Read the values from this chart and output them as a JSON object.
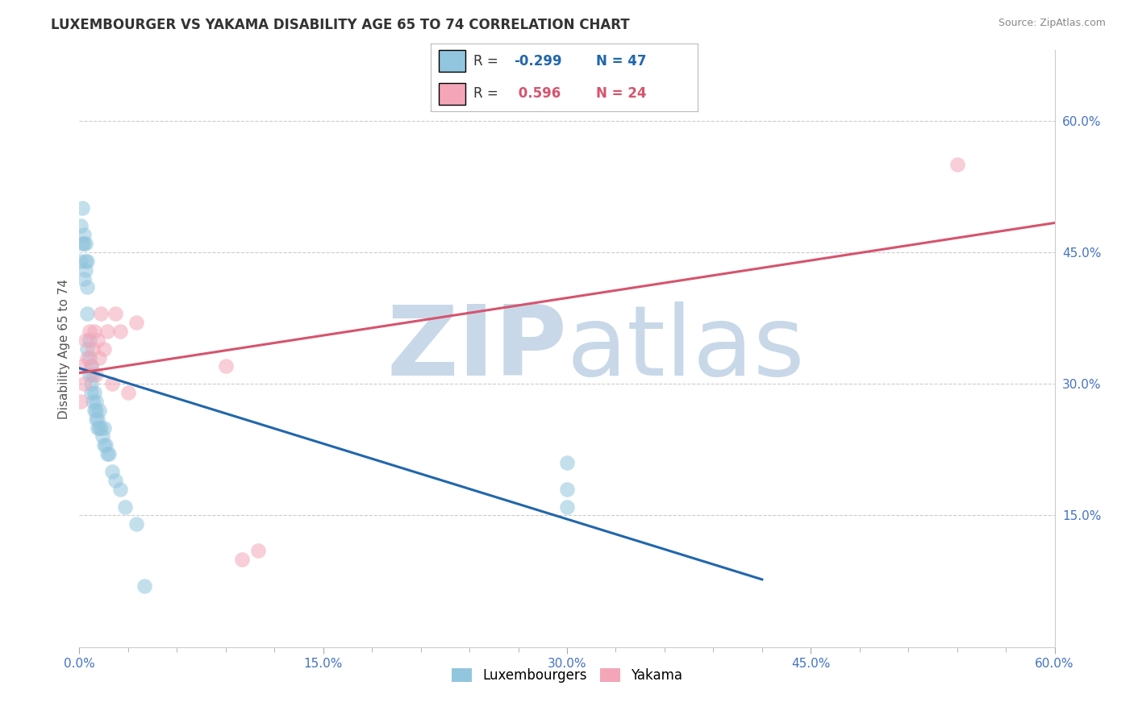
{
  "title": "LUXEMBOURGER VS YAKAMA DISABILITY AGE 65 TO 74 CORRELATION CHART",
  "source": "Source: ZipAtlas.com",
  "ylabel": "Disability Age 65 to 74",
  "xlim": [
    0.0,
    0.6
  ],
  "ylim": [
    0.0,
    0.68
  ],
  "xtick_labels": [
    "0.0%",
    "",
    "",
    "",
    "",
    "15.0%",
    "",
    "",
    "",
    "",
    "30.0%",
    "",
    "",
    "",
    "",
    "45.0%",
    "",
    "",
    "",
    "",
    "60.0%"
  ],
  "xtick_vals": [
    0.0,
    0.03,
    0.06,
    0.09,
    0.12,
    0.15,
    0.18,
    0.21,
    0.24,
    0.27,
    0.3,
    0.33,
    0.36,
    0.39,
    0.42,
    0.45,
    0.48,
    0.51,
    0.54,
    0.57,
    0.6
  ],
  "xtick_major_labels": [
    "0.0%",
    "15.0%",
    "30.0%",
    "45.0%",
    "60.0%"
  ],
  "xtick_major_vals": [
    0.0,
    0.15,
    0.3,
    0.45,
    0.6
  ],
  "ytick_labels": [
    "15.0%",
    "30.0%",
    "45.0%",
    "60.0%"
  ],
  "ytick_vals": [
    0.15,
    0.3,
    0.45,
    0.6
  ],
  "blue_color": "#92c5de",
  "pink_color": "#f4a6b8",
  "line_blue": "#2166ac",
  "line_pink": "#d6546e",
  "watermark_zip_color": "#c8d8e8",
  "watermark_atlas_color": "#c8d8e8",
  "grid_color": "#cccccc",
  "bg_color": "#ffffff",
  "title_fontsize": 12,
  "label_fontsize": 11,
  "tick_fontsize": 11,
  "lux_x": [
    0.001,
    0.001,
    0.002,
    0.002,
    0.003,
    0.003,
    0.003,
    0.004,
    0.004,
    0.004,
    0.005,
    0.005,
    0.005,
    0.005,
    0.006,
    0.006,
    0.006,
    0.007,
    0.007,
    0.007,
    0.008,
    0.008,
    0.009,
    0.009,
    0.01,
    0.01,
    0.01,
    0.011,
    0.011,
    0.012,
    0.012,
    0.013,
    0.014,
    0.015,
    0.015,
    0.016,
    0.017,
    0.018,
    0.02,
    0.022,
    0.025,
    0.028,
    0.035,
    0.04,
    0.3,
    0.3,
    0.3
  ],
  "lux_y": [
    0.48,
    0.44,
    0.5,
    0.46,
    0.47,
    0.42,
    0.46,
    0.43,
    0.44,
    0.46,
    0.44,
    0.41,
    0.38,
    0.34,
    0.35,
    0.33,
    0.31,
    0.32,
    0.3,
    0.29,
    0.31,
    0.28,
    0.29,
    0.27,
    0.28,
    0.27,
    0.26,
    0.26,
    0.25,
    0.27,
    0.25,
    0.25,
    0.24,
    0.25,
    0.23,
    0.23,
    0.22,
    0.22,
    0.2,
    0.19,
    0.18,
    0.16,
    0.14,
    0.07,
    0.21,
    0.18,
    0.16
  ],
  "yak_x": [
    0.001,
    0.002,
    0.003,
    0.004,
    0.005,
    0.006,
    0.007,
    0.008,
    0.009,
    0.01,
    0.011,
    0.012,
    0.013,
    0.015,
    0.017,
    0.02,
    0.022,
    0.025,
    0.03,
    0.035,
    0.09,
    0.1,
    0.11,
    0.54
  ],
  "yak_y": [
    0.28,
    0.32,
    0.3,
    0.35,
    0.33,
    0.36,
    0.32,
    0.34,
    0.36,
    0.31,
    0.35,
    0.33,
    0.38,
    0.34,
    0.36,
    0.3,
    0.38,
    0.36,
    0.29,
    0.37,
    0.32,
    0.1,
    0.11,
    0.55
  ],
  "blue_line_x_start": 0.0,
  "blue_line_x_end": 0.42,
  "pink_line_x_start": 0.0,
  "pink_line_x_end": 0.6
}
